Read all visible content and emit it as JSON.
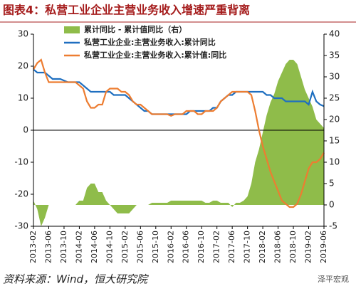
{
  "chart_data": {
    "type": "line_area",
    "title": "图表4：私营工业企业主营业务收入增速严重背离",
    "source": "资料来源：Wind，恒大研究院",
    "watermark": "泽平宏观",
    "categories": [
      "2013-02",
      null,
      null,
      null,
      "2013-06",
      null,
      null,
      null,
      "2013-10",
      null,
      null,
      null,
      "2014-02",
      null,
      null,
      null,
      "2014-06",
      null,
      null,
      null,
      "2014-10",
      null,
      null,
      null,
      "2015-02",
      null,
      null,
      null,
      "2015-06",
      null,
      null,
      null,
      "2015-10",
      null,
      null,
      null,
      "2016-02",
      null,
      null,
      null,
      "2016-06",
      null,
      null,
      null,
      "2016-10",
      null,
      null,
      null,
      "2017-02",
      null,
      null,
      null,
      "2017-06",
      null,
      null,
      null,
      "2017-10",
      null,
      null,
      null,
      "2018-02",
      null,
      null,
      null,
      "2018-06",
      null,
      null,
      null,
      "2018-10",
      null,
      null,
      null,
      "2019-02",
      null,
      null,
      null,
      "2019-06"
    ],
    "series": [
      {
        "name": "累计同比 - 累计值同比（右）",
        "color": "#8fbc4a",
        "axis": "y2",
        "kind": "area",
        "values": [
          1,
          -1,
          -5,
          -3,
          0,
          0,
          0,
          0,
          0,
          0,
          0,
          0,
          1,
          1,
          4,
          5,
          5,
          3,
          3,
          1,
          0,
          -1,
          -2,
          -2,
          -2,
          -2,
          -1,
          0,
          0,
          0,
          0,
          0.5,
          0.5,
          0.5,
          0.5,
          0.5,
          1,
          1,
          1,
          1,
          1,
          1,
          1,
          1,
          1,
          0.5,
          0.5,
          1,
          1,
          0.5,
          0.5,
          0.5,
          -0.5,
          0.5,
          0.5,
          1,
          2,
          5,
          10,
          13,
          17,
          21,
          24,
          26,
          29,
          31,
          33,
          34,
          34,
          33,
          30,
          27,
          25,
          23,
          20,
          19,
          18
        ]
      },
      {
        "name": "私营工业企业:主营业务收入:累计同比",
        "color": "#1f6fc0",
        "kind": "line",
        "values": [
          19,
          18,
          18,
          18,
          17,
          16,
          16,
          16,
          15.5,
          15,
          15,
          15,
          15,
          14,
          13,
          12,
          12,
          12,
          12,
          12,
          12,
          11,
          11,
          11,
          11,
          10,
          9,
          8,
          7,
          6,
          6,
          5,
          5,
          5,
          5,
          5,
          5,
          5,
          5,
          5,
          5,
          6,
          6,
          6,
          6,
          6,
          6,
          7,
          7,
          9,
          10,
          11,
          11,
          12,
          12,
          12,
          12,
          12,
          12,
          12,
          12,
          11,
          11,
          10,
          10,
          10,
          9,
          9,
          9,
          9,
          9,
          9,
          8,
          12,
          9,
          8,
          7.5
        ]
      },
      {
        "name": "私营工业企业:主营业务收入:累计值:同比",
        "color": "#ed7d31",
        "kind": "line",
        "values": [
          19,
          21,
          22,
          18,
          15,
          15,
          15,
          15,
          15,
          15,
          15,
          15,
          14,
          13,
          9,
          7,
          7,
          8,
          8,
          12,
          13,
          13,
          13,
          12,
          12,
          11,
          9,
          8,
          8,
          7,
          6,
          5,
          5,
          5,
          5,
          5,
          4.5,
          5,
          5,
          5,
          6,
          6,
          6,
          5,
          5,
          6,
          6,
          6,
          7,
          9,
          10,
          11,
          12,
          12,
          12,
          12,
          12,
          11,
          6,
          0,
          -5,
          -9,
          -13,
          -16,
          -19,
          -22,
          -23,
          -24,
          -24,
          -23,
          -20,
          -16,
          -12,
          -10,
          -10,
          -9,
          -7
        ]
      }
    ],
    "ylim": [
      -30,
      30
    ],
    "yticks": [
      -30,
      -20,
      -10,
      0,
      10,
      20,
      30
    ],
    "y2lim": [
      -5,
      40
    ],
    "y2ticks": [
      -5,
      0,
      5,
      10,
      15,
      20,
      25,
      30,
      35,
      40
    ]
  }
}
